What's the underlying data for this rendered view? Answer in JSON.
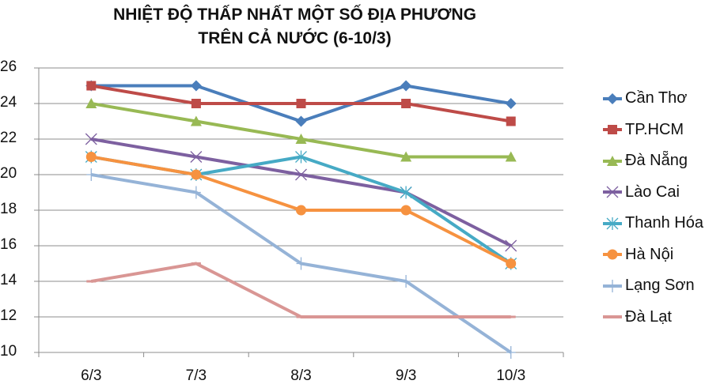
{
  "chart_data": {
    "type": "line",
    "title": "NHIỆT ĐỘ THẤP NHẤT MỘT SỐ ĐỊA PHƯƠNG TRÊN CẢ NƯỚC (6-10/3)",
    "title_lines": [
      "NHIỆT ĐỘ THẤP NHẤT MỘT SỐ ĐỊA PHƯƠNG",
      "TRÊN CẢ NƯỚC (6-10/3)"
    ],
    "xlabel": "",
    "ylabel": "",
    "categories": [
      "6/3",
      "7/3",
      "8/3",
      "9/3",
      "10/3"
    ],
    "ylim": [
      10,
      26
    ],
    "yticks": [
      "26",
      "24",
      "22",
      "20",
      "18",
      "16",
      "14",
      "12",
      "10"
    ],
    "grid": true,
    "legend_position": "right",
    "series": [
      {
        "name": "Cần Thơ",
        "color": "#4A7EBB",
        "marker": "diamond",
        "values": [
          25,
          25,
          23,
          25,
          24
        ]
      },
      {
        "name": "TP.HCM",
        "color": "#BE4B48",
        "marker": "square",
        "values": [
          25,
          24,
          24,
          24,
          23
        ]
      },
      {
        "name": "Đà Nẵng",
        "color": "#98B954",
        "marker": "triangle",
        "values": [
          24,
          23,
          22,
          21,
          21
        ]
      },
      {
        "name": "Lào Cai",
        "color": "#7D60A0",
        "marker": "x",
        "values": [
          22,
          21,
          20,
          19,
          16
        ]
      },
      {
        "name": "Thanh Hóa",
        "color": "#46AAC5",
        "marker": "star",
        "values": [
          21,
          20,
          21,
          19,
          15
        ]
      },
      {
        "name": "Hà Nội",
        "color": "#F69240",
        "marker": "circle",
        "values": [
          21,
          20,
          18,
          18,
          15
        ]
      },
      {
        "name": "Lạng Sơn",
        "color": "#95B3D7",
        "marker": "plus",
        "values": [
          20,
          19,
          15,
          14,
          10
        ]
      },
      {
        "name": "Đà Lạt",
        "color": "#D99694",
        "marker": "dash",
        "values": [
          14,
          15,
          12,
          12,
          12
        ]
      }
    ]
  }
}
